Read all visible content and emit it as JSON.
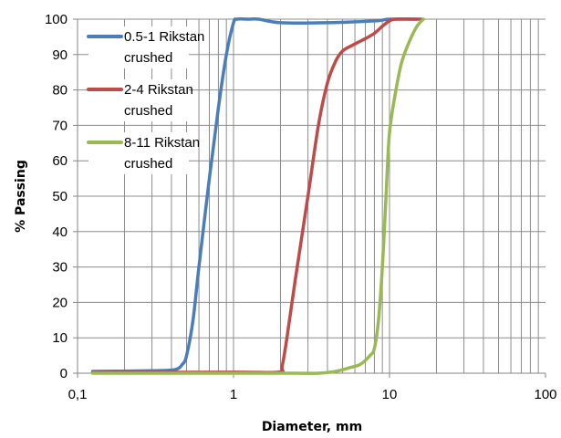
{
  "chart_data": {
    "type": "line",
    "title": "",
    "xlabel": "Diameter, mm",
    "ylabel": "% Passing",
    "x_scale": "log",
    "xlim": [
      0.1,
      100
    ],
    "ylim": [
      0,
      100
    ],
    "x_ticks": [
      0.1,
      1,
      10,
      100
    ],
    "x_tick_labels": [
      "0,1",
      "1",
      "10",
      "100"
    ],
    "y_ticks": [
      0,
      10,
      20,
      30,
      40,
      50,
      60,
      70,
      80,
      90,
      100
    ],
    "y_tick_labels": [
      "0",
      "10",
      "20",
      "30",
      "40",
      "50",
      "60",
      "70",
      "80",
      "90",
      "100"
    ],
    "grid": {
      "horizontal_major": true,
      "vertical_minor_log": true
    },
    "legend": {
      "position": "top-left"
    },
    "series": [
      {
        "name": "0.5-1 Rikstan crushed",
        "name_lines": [
          "0.5-1 Rikstan",
          "crushed"
        ],
        "color": "#4A7EBB",
        "points": [
          [
            0.125,
            0.5
          ],
          [
            0.3,
            0.7
          ],
          [
            0.42,
            1
          ],
          [
            0.47,
            2.5
          ],
          [
            0.5,
            5
          ],
          [
            0.55,
            15
          ],
          [
            0.6,
            30
          ],
          [
            0.7,
            55
          ],
          [
            0.8,
            75
          ],
          [
            0.9,
            90
          ],
          [
            1.0,
            99
          ],
          [
            1.05,
            100
          ],
          [
            1.25,
            100
          ],
          [
            1.45,
            100
          ],
          [
            2.0,
            99
          ],
          [
            4.0,
            99
          ],
          [
            8.0,
            99.5
          ],
          [
            10.0,
            100
          ],
          [
            15.0,
            100
          ]
        ]
      },
      {
        "name": "2-4 Rikstan crushed",
        "name_lines": [
          "2-4 Rikstan",
          "crushed"
        ],
        "color": "#BE4B48",
        "points": [
          [
            0.125,
            0.2
          ],
          [
            1.0,
            0.3
          ],
          [
            1.95,
            0.3
          ],
          [
            2.05,
            2
          ],
          [
            2.2,
            10
          ],
          [
            2.5,
            27
          ],
          [
            3.0,
            50
          ],
          [
            3.5,
            70
          ],
          [
            4.0,
            82
          ],
          [
            4.5,
            88
          ],
          [
            5.0,
            91
          ],
          [
            6.0,
            93
          ],
          [
            7.0,
            94.5
          ],
          [
            8.0,
            96
          ],
          [
            9.0,
            98
          ],
          [
            10.0,
            99.5
          ],
          [
            11.0,
            100
          ],
          [
            16.0,
            100
          ]
        ]
      },
      {
        "name": "8-11 Rikstan crushed",
        "name_lines": [
          "8-11 Rikstan",
          "crushed"
        ],
        "color": "#98B954",
        "points": [
          [
            0.125,
            0
          ],
          [
            1.0,
            0
          ],
          [
            2.5,
            0
          ],
          [
            3.5,
            0
          ],
          [
            4.5,
            0.5
          ],
          [
            5.5,
            1.5
          ],
          [
            6.5,
            2.5
          ],
          [
            7.5,
            5
          ],
          [
            8.0,
            7
          ],
          [
            8.5,
            15
          ],
          [
            9.0,
            30
          ],
          [
            9.5,
            50
          ],
          [
            10.0,
            68
          ],
          [
            11.0,
            80
          ],
          [
            12.0,
            88
          ],
          [
            13.5,
            94
          ],
          [
            15.0,
            98
          ],
          [
            16.5,
            100
          ]
        ]
      }
    ]
  }
}
